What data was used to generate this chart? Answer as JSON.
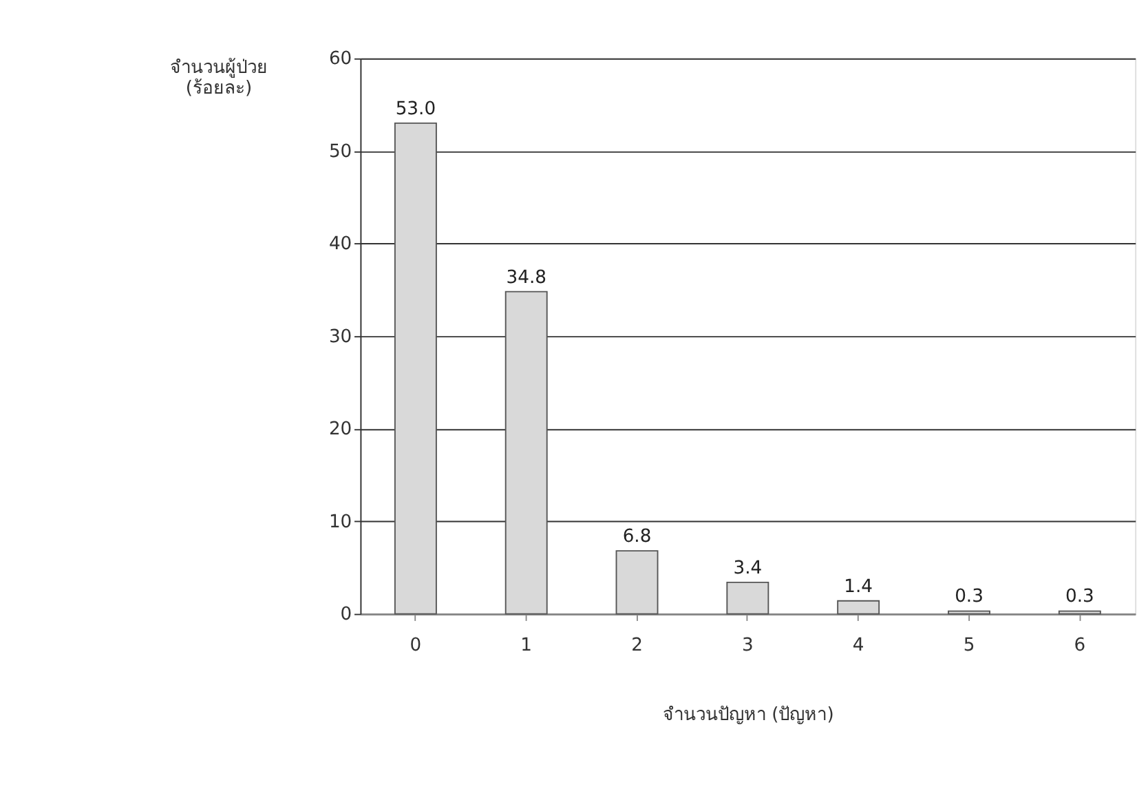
{
  "chart_data": {
    "type": "bar",
    "xlabel": "จำนวนปัญหา (ปัญหา)",
    "ylabel": "จำนวนผู้ป่วย\n(ร้อยละ)",
    "categories": [
      "0",
      "1",
      "2",
      "3",
      "4",
      "5",
      "6"
    ],
    "values": [
      53.0,
      34.8,
      6.8,
      3.4,
      1.4,
      0.3,
      0.3
    ],
    "value_labels": [
      "53.0",
      "34.8",
      "6.8",
      "3.4",
      "1.4",
      "0.3",
      "0.3"
    ],
    "color": "#d9d9d9",
    "ylim": [
      0,
      60
    ],
    "yticks": [
      0,
      10,
      20,
      30,
      40,
      50,
      60
    ],
    "grid": "y"
  }
}
